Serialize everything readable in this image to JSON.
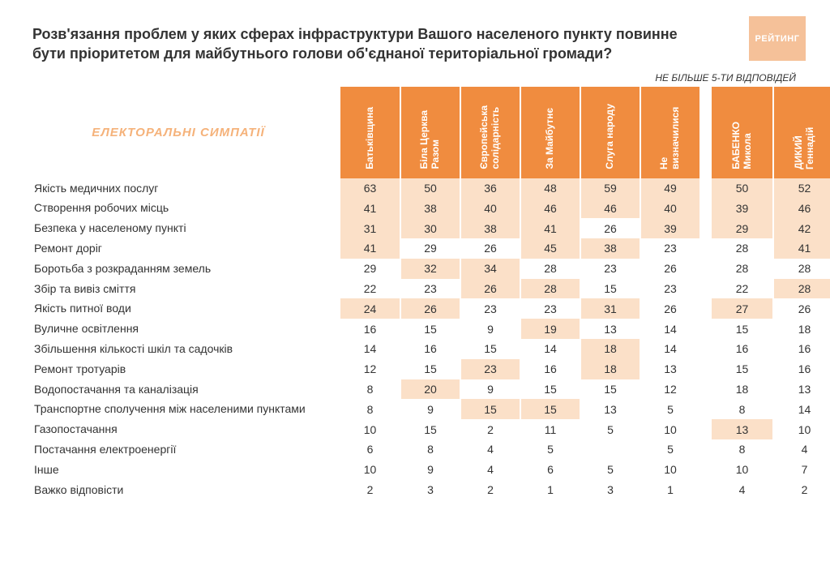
{
  "logo_text": "РЕЙТИНГ",
  "title": "Розв'язання проблем у яких сферах інфраструктури Вашого населеного пункту повинне бути пріоритетом для майбутнього голови об'єднаної територіальної громади?",
  "note": "НЕ БІЛЬШЕ 5-ТИ ВІДПОВІДЕЙ",
  "side_label": "ЕЛЕКТОРАЛЬНІ СИМПАТІЇ",
  "columns_group1": [
    "Батьківщина",
    "Біла Церква\nРазом",
    "Європейська\nсолідарність",
    "За Майбутнє",
    "Слуга народу",
    "Не визначилися"
  ],
  "columns_group2": [
    "БАБЕНКО\nМикола",
    "ДИКИЙ Геннадій"
  ],
  "rows": [
    {
      "label": "Якість медичних послуг",
      "g1": [
        63,
        50,
        36,
        48,
        59,
        49
      ],
      "g2": [
        50,
        52
      ],
      "hl1": [
        1,
        1,
        1,
        1,
        1,
        1
      ],
      "hl2": [
        1,
        1
      ]
    },
    {
      "label": "Створення робочих місць",
      "g1": [
        41,
        38,
        40,
        46,
        46,
        40
      ],
      "g2": [
        39,
        46
      ],
      "hl1": [
        1,
        1,
        1,
        1,
        1,
        1
      ],
      "hl2": [
        1,
        1
      ]
    },
    {
      "label": "Безпека у населеному пункті",
      "g1": [
        31,
        30,
        38,
        41,
        26,
        39
      ],
      "g2": [
        29,
        42
      ],
      "hl1": [
        1,
        1,
        1,
        1,
        0,
        1
      ],
      "hl2": [
        1,
        1
      ]
    },
    {
      "label": "Ремонт доріг",
      "g1": [
        41,
        29,
        26,
        45,
        38,
        23
      ],
      "g2": [
        28,
        41
      ],
      "hl1": [
        1,
        0,
        0,
        1,
        1,
        0
      ],
      "hl2": [
        0,
        1
      ]
    },
    {
      "label": "Боротьба з розкраданням земель",
      "g1": [
        29,
        32,
        34,
        28,
        23,
        26
      ],
      "g2": [
        28,
        28
      ],
      "hl1": [
        0,
        1,
        1,
        0,
        0,
        0
      ],
      "hl2": [
        0,
        0
      ]
    },
    {
      "label": "Збір та вивіз сміття",
      "g1": [
        22,
        23,
        26,
        28,
        15,
        23
      ],
      "g2": [
        22,
        28
      ],
      "hl1": [
        0,
        0,
        1,
        1,
        0,
        0
      ],
      "hl2": [
        0,
        1
      ]
    },
    {
      "label": "Якість питної води",
      "g1": [
        24,
        26,
        23,
        23,
        31,
        26
      ],
      "g2": [
        27,
        26
      ],
      "hl1": [
        1,
        1,
        0,
        0,
        1,
        0
      ],
      "hl2": [
        1,
        0
      ]
    },
    {
      "label": "Вуличне освітлення",
      "g1": [
        16,
        15,
        9,
        19,
        13,
        14
      ],
      "g2": [
        15,
        18
      ],
      "hl1": [
        0,
        0,
        0,
        1,
        0,
        0
      ],
      "hl2": [
        0,
        0
      ]
    },
    {
      "label": "Збільшення кількості шкіл та садочків",
      "g1": [
        14,
        16,
        15,
        14,
        18,
        14
      ],
      "g2": [
        16,
        16
      ],
      "hl1": [
        0,
        0,
        0,
        0,
        1,
        0
      ],
      "hl2": [
        0,
        0
      ]
    },
    {
      "label": "Ремонт тротуарів",
      "g1": [
        12,
        15,
        23,
        16,
        18,
        13
      ],
      "g2": [
        15,
        16
      ],
      "hl1": [
        0,
        0,
        1,
        0,
        1,
        0
      ],
      "hl2": [
        0,
        0
      ]
    },
    {
      "label": "Водопостачання та каналізація",
      "g1": [
        8,
        20,
        9,
        15,
        15,
        12
      ],
      "g2": [
        18,
        13
      ],
      "hl1": [
        0,
        1,
        0,
        0,
        0,
        0
      ],
      "hl2": [
        0,
        0
      ]
    },
    {
      "label": "Транспортне сполучення між населеними пунктами",
      "g1": [
        8,
        9,
        15,
        15,
        13,
        5
      ],
      "g2": [
        8,
        14
      ],
      "hl1": [
        0,
        0,
        1,
        1,
        0,
        0
      ],
      "hl2": [
        0,
        0
      ]
    },
    {
      "label": "Газопостачання",
      "g1": [
        10,
        15,
        2,
        11,
        5,
        10
      ],
      "g2": [
        13,
        10
      ],
      "hl1": [
        0,
        0,
        0,
        0,
        0,
        0
      ],
      "hl2": [
        1,
        0
      ]
    },
    {
      "label": "Постачання електроенергії",
      "g1": [
        6,
        8,
        4,
        5,
        null,
        5
      ],
      "g2": [
        8,
        4
      ],
      "hl1": [
        0,
        0,
        0,
        0,
        0,
        0
      ],
      "hl2": [
        0,
        0
      ]
    },
    {
      "label": "Інше",
      "g1": [
        10,
        9,
        4,
        6,
        5,
        10
      ],
      "g2": [
        10,
        7
      ],
      "hl1": [
        0,
        0,
        0,
        0,
        0,
        0
      ],
      "hl2": [
        0,
        0
      ]
    },
    {
      "label": "Важко відповісти",
      "g1": [
        2,
        3,
        2,
        1,
        3,
        1
      ],
      "g2": [
        4,
        2
      ],
      "hl1": [
        0,
        0,
        0,
        0,
        0,
        0
      ],
      "hl2": [
        0,
        0
      ]
    }
  ],
  "colors": {
    "header_bg": "#f08c3f",
    "highlight_bg": "#fbe0c8",
    "text": "#333333",
    "accent_text": "#f5b27a",
    "logo_bg": "#f5c199"
  },
  "fontsize": {
    "title": 18,
    "note": 12,
    "header": 12,
    "body": 14,
    "side_label": 15
  }
}
